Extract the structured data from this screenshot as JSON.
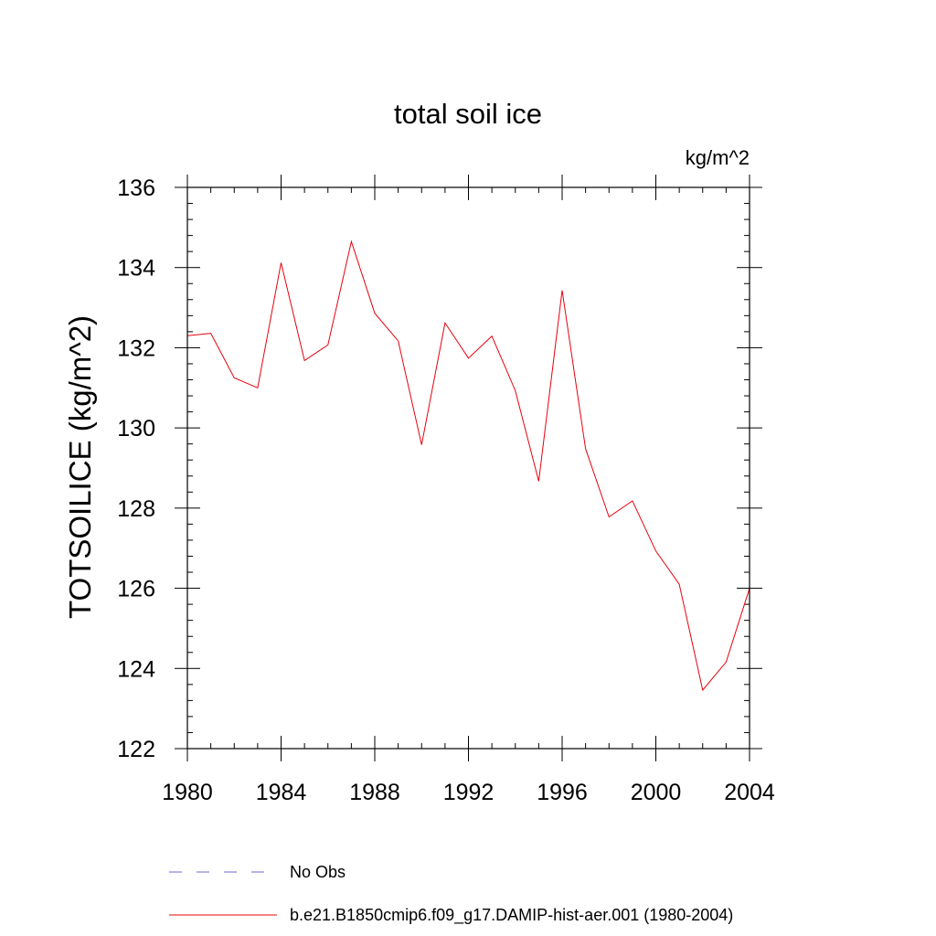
{
  "chart_data": {
    "type": "line",
    "title": "total soil ice",
    "units": "kg/m^2",
    "ylabel": "TOTSOILICE  (kg/m^2)",
    "xlabel": "",
    "xlim": [
      1980,
      2004
    ],
    "ylim": [
      122,
      136
    ],
    "xticks": [
      1980,
      1984,
      1988,
      1992,
      1996,
      2000,
      2004
    ],
    "yticks": [
      122,
      124,
      126,
      128,
      130,
      132,
      134,
      136
    ],
    "grid": false,
    "series": [
      {
        "name": "b.e21.B1850cmip6.f09_g17.DAMIP-hist-aer.001 (1980-2004)",
        "color": "#e8000b",
        "x": [
          1980,
          1981,
          1982,
          1983,
          1984,
          1985,
          1986,
          1987,
          1988,
          1989,
          1990,
          1991,
          1992,
          1993,
          1994,
          1995,
          1996,
          1997,
          1998,
          1999,
          2000,
          2001,
          2002,
          2003,
          2004
        ],
        "values": [
          132.3,
          132.36,
          131.25,
          131.0,
          134.12,
          131.68,
          132.07,
          134.65,
          132.86,
          132.17,
          129.58,
          132.62,
          131.74,
          132.29,
          130.93,
          128.67,
          133.43,
          129.48,
          127.78,
          128.18,
          126.93,
          126.1,
          123.46,
          124.16,
          126.0
        ]
      }
    ],
    "legend": [
      {
        "label": "No Obs",
        "color": "#6a6ad8",
        "style": "dashed"
      },
      {
        "label": "b.e21.B1850cmip6.f09_g17.DAMIP-hist-aer.001 (1980-2004)",
        "color": "#e8000b",
        "style": "solid"
      }
    ]
  }
}
